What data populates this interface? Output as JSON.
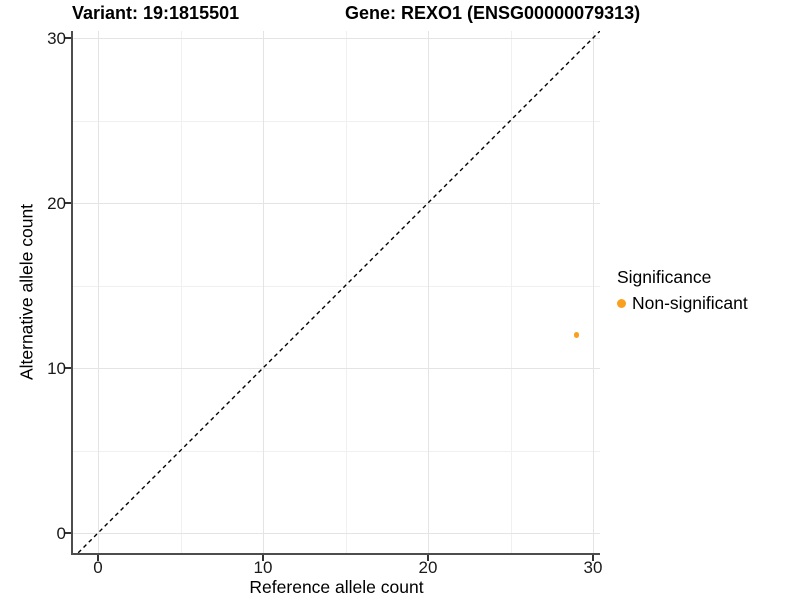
{
  "header": {
    "variant_title": "Variant: 19:1815501",
    "gene_title": "Gene: REXO1 (ENSG00000079313)"
  },
  "chart_data": {
    "type": "scatter",
    "title_left": "Variant: 19:1815501",
    "title_right": "Gene: REXO1 (ENSG00000079313)",
    "xlabel": "Reference allele count",
    "ylabel": "Alternative allele count",
    "xlim": [
      -1.52,
      30.45
    ],
    "ylim": [
      -1.2,
      30.45
    ],
    "x_major_ticks": [
      0,
      10,
      20,
      30
    ],
    "y_major_ticks": [
      0,
      10,
      20,
      30
    ],
    "x_minor_ticks": [
      5,
      15,
      25
    ],
    "y_minor_ticks": [
      5,
      15,
      25
    ],
    "grid": true,
    "abline": {
      "slope": 1,
      "intercept": 0,
      "style": "dashed",
      "color": "#000000",
      "meaning": "identity line y = x"
    },
    "series": [
      {
        "name": "Non-significant",
        "color": "#F9A11E",
        "points": [
          [
            29,
            12
          ]
        ]
      }
    ],
    "legend": {
      "title": "Significance",
      "position": "right",
      "entries": [
        {
          "label": "Non-significant",
          "color": "#F9A11E"
        }
      ]
    }
  }
}
